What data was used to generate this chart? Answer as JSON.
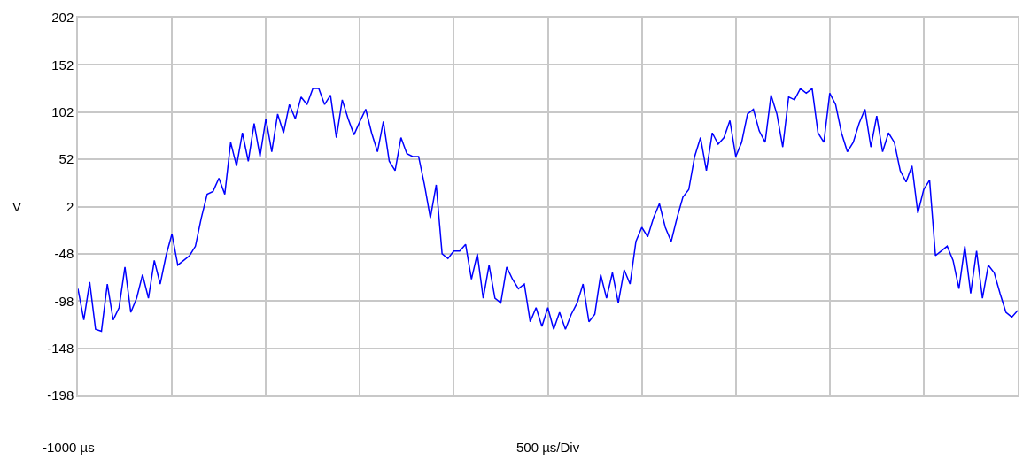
{
  "chart_data": {
    "type": "line",
    "ylabel": "V",
    "annotations": [
      "-1000 µs",
      "500 µs/Div"
    ],
    "categories": [
      null,
      null,
      null,
      null,
      null,
      null,
      null,
      null,
      null,
      null,
      null,
      null,
      null,
      null,
      null,
      null,
      null,
      null,
      null,
      null,
      null,
      null,
      null,
      null,
      null,
      null,
      null,
      null,
      null,
      null,
      null,
      null,
      null,
      null,
      null,
      null,
      null,
      null,
      null,
      null,
      null,
      null,
      null,
      null,
      null,
      null,
      null,
      null,
      null,
      null,
      null,
      null,
      null,
      null,
      null,
      null,
      null,
      null,
      null,
      null,
      null,
      null,
      null,
      null,
      null,
      null,
      null,
      null,
      null,
      null,
      null,
      null,
      null,
      null,
      null,
      null,
      null,
      null,
      null,
      null,
      null,
      null,
      null,
      null,
      null,
      null,
      null,
      null,
      null,
      null,
      null,
      null,
      null,
      null,
      null,
      null,
      null,
      null,
      null,
      null,
      null,
      null,
      null,
      null,
      null,
      null,
      null,
      null,
      null,
      null,
      null,
      null,
      null,
      null,
      null,
      null,
      null,
      null,
      null,
      null,
      null,
      null,
      null,
      null,
      null,
      null,
      null,
      null,
      null,
      null,
      null,
      null,
      null,
      null,
      null,
      null,
      null,
      null,
      null,
      null,
      null,
      null,
      null,
      null,
      null,
      null,
      null,
      null,
      null,
      null,
      null,
      null,
      null,
      null,
      null,
      null,
      null,
      null,
      null,
      null,
      null
    ],
    "series": [
      {
        "color": "#0000ff",
        "values": [
          -85,
          -118,
          -78,
          -128,
          -130,
          -80,
          -118,
          -105,
          -62,
          -110,
          -95,
          -70,
          -95,
          -55,
          -80,
          -50,
          -27,
          -60,
          -55,
          -50,
          -40,
          -10,
          15,
          18,
          32,
          15,
          70,
          45,
          80,
          50,
          90,
          55,
          95,
          60,
          100,
          80,
          110,
          95,
          118,
          110,
          127,
          127,
          110,
          120,
          75,
          115,
          95,
          78,
          92,
          105,
          80,
          60,
          92,
          50,
          40,
          75,
          58,
          55,
          55,
          25,
          -10,
          25,
          -48,
          -53,
          -45,
          -45,
          -38,
          -75,
          -48,
          -95,
          -60,
          -95,
          -100,
          -62,
          -75,
          -85,
          -80,
          -120,
          -105,
          -125,
          -105,
          -128,
          -110,
          -128,
          -112,
          -100,
          -80,
          -120,
          -112,
          -70,
          -95,
          -68,
          -100,
          -65,
          -80,
          -35,
          -20,
          -30,
          -10,
          5,
          -20,
          -35,
          -10,
          12,
          20,
          55,
          75,
          40,
          80,
          68,
          75,
          93,
          55,
          70,
          100,
          105,
          82,
          70,
          120,
          100,
          65,
          118,
          115,
          127,
          122,
          127,
          80,
          70,
          122,
          110,
          80,
          60,
          70,
          90,
          105,
          65,
          98,
          60,
          80,
          70,
          40,
          28,
          45,
          -5,
          20,
          30,
          -50,
          -45,
          -40,
          -55,
          -85,
          -40,
          -90,
          -45,
          -95,
          -60,
          -68,
          -90,
          -110,
          -115,
          -108
        ]
      }
    ],
    "ylim": [
      -198,
      202
    ],
    "yticks": [
      -198,
      -148,
      -98,
      -48,
      2,
      52,
      102,
      152,
      202
    ],
    "tick_labels": "y",
    "grid": true,
    "line_style": "solid",
    "marker": "none"
  }
}
